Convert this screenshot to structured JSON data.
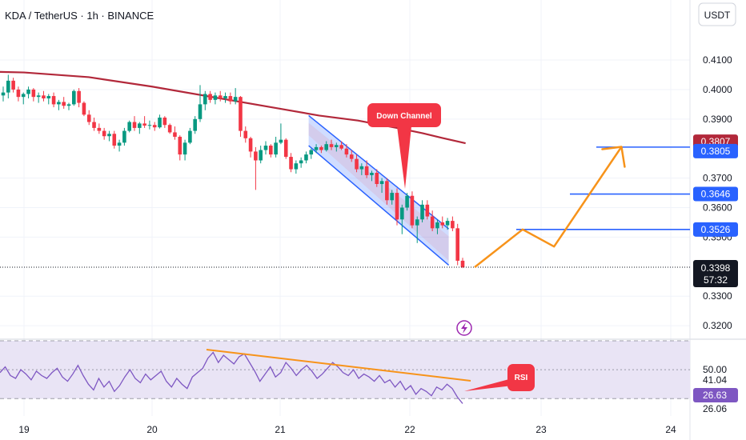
{
  "header": {
    "symbol_line": "KDA / TetherUS · 1h · BINANCE",
    "currency_button": "USDT"
  },
  "colors": {
    "up": "#089981",
    "down": "#f23645",
    "ma": "#b2283a",
    "blue_level": "#2962ff",
    "orange_path": "#f7931a",
    "rsi_line": "#7e57c2",
    "rsi_band": "#e9e4f5",
    "trend_orange": "#f7931a",
    "callout_red": "#f23645"
  },
  "chart_data": {
    "type": "candlestick",
    "x_labels": [
      "19",
      "20",
      "21",
      "22",
      "23",
      "24"
    ],
    "price_ticks": [
      "0.4100",
      "0.4000",
      "0.3900",
      "0.3700",
      "0.3600",
      "0.3500",
      "0.3300",
      "0.3200"
    ],
    "price_ylim": [
      0.3165,
      0.4195
    ],
    "current_price": {
      "label": "0.3398",
      "countdown": "57:32",
      "value": 0.3398
    },
    "ma_tag": {
      "label": "0.3807",
      "value": 0.3807
    },
    "levels": [
      {
        "label": "0.3805",
        "value": 0.3805
      },
      {
        "label": "0.3646",
        "value": 0.3646
      },
      {
        "label": "0.3526",
        "value": 0.3526
      }
    ],
    "ma_series": [
      [
        18.6,
        0.4062
      ],
      [
        19.0,
        0.4058
      ],
      [
        19.5,
        0.4042
      ],
      [
        20.0,
        0.401
      ],
      [
        20.5,
        0.3972
      ],
      [
        21.0,
        0.3935
      ],
      [
        21.3,
        0.3912
      ],
      [
        21.6,
        0.3895
      ],
      [
        21.9,
        0.387
      ],
      [
        22.1,
        0.3852
      ],
      [
        22.25,
        0.3836
      ],
      [
        22.43,
        0.3818
      ]
    ],
    "down_channel": {
      "label": "Down Channel",
      "upper": [
        [
          21.22,
          0.3912
        ],
        [
          22.3,
          0.3528
        ]
      ],
      "lower": [
        [
          21.22,
          0.381
        ],
        [
          22.3,
          0.3405
        ]
      ]
    },
    "projection_path": {
      "points": [
        [
          22.5,
          0.3398
        ],
        [
          22.87,
          0.3526
        ],
        [
          23.1,
          0.3468
        ],
        [
          23.62,
          0.3806
        ]
      ],
      "arrow_to": [
        23.62,
        0.3806
      ]
    },
    "candles": [
      [
        0.398,
        0.401,
        0.396,
        0.399
      ],
      [
        0.399,
        0.405,
        0.397,
        0.403
      ],
      [
        0.403,
        0.404,
        0.399,
        0.4
      ],
      [
        0.4,
        0.401,
        0.396,
        0.3975
      ],
      [
        0.3975,
        0.399,
        0.395,
        0.3985
      ],
      [
        0.3985,
        0.401,
        0.397,
        0.4
      ],
      [
        0.4,
        0.4005,
        0.396,
        0.3975
      ],
      [
        0.3975,
        0.399,
        0.3955,
        0.398
      ],
      [
        0.398,
        0.3995,
        0.396,
        0.397
      ],
      [
        0.397,
        0.3985,
        0.395,
        0.3978
      ],
      [
        0.3978,
        0.399,
        0.394,
        0.395
      ],
      [
        0.395,
        0.3965,
        0.393,
        0.3958
      ],
      [
        0.3958,
        0.3975,
        0.3935,
        0.3945
      ],
      [
        0.3945,
        0.3955,
        0.393,
        0.395
      ],
      [
        0.395,
        0.4,
        0.3945,
        0.3995
      ],
      [
        0.3995,
        0.4005,
        0.394,
        0.3955
      ],
      [
        0.3955,
        0.396,
        0.391,
        0.3915
      ],
      [
        0.3915,
        0.393,
        0.388,
        0.389
      ],
      [
        0.389,
        0.3905,
        0.386,
        0.387
      ],
      [
        0.387,
        0.3885,
        0.385,
        0.386
      ],
      [
        0.386,
        0.387,
        0.383,
        0.3842
      ],
      [
        0.3842,
        0.386,
        0.3825,
        0.385
      ],
      [
        0.385,
        0.386,
        0.38,
        0.381
      ],
      [
        0.381,
        0.383,
        0.379,
        0.382
      ],
      [
        0.382,
        0.387,
        0.381,
        0.386
      ],
      [
        0.386,
        0.3895,
        0.3855,
        0.389
      ],
      [
        0.389,
        0.391,
        0.386,
        0.387
      ],
      [
        0.387,
        0.389,
        0.385,
        0.3885
      ],
      [
        0.3885,
        0.391,
        0.387,
        0.3878
      ],
      [
        0.3878,
        0.3895,
        0.3865,
        0.388
      ],
      [
        0.388,
        0.389,
        0.386,
        0.3872
      ],
      [
        0.3872,
        0.3915,
        0.3868,
        0.3905
      ],
      [
        0.3905,
        0.391,
        0.387,
        0.388
      ],
      [
        0.388,
        0.3885,
        0.385,
        0.3855
      ],
      [
        0.3855,
        0.3875,
        0.383,
        0.384
      ],
      [
        0.384,
        0.3845,
        0.376,
        0.378
      ],
      [
        0.378,
        0.383,
        0.376,
        0.382
      ],
      [
        0.382,
        0.387,
        0.3815,
        0.386
      ],
      [
        0.386,
        0.391,
        0.385,
        0.39
      ],
      [
        0.39,
        0.4015,
        0.389,
        0.395
      ],
      [
        0.395,
        0.3995,
        0.393,
        0.3985
      ],
      [
        0.3985,
        0.3995,
        0.3955,
        0.3965
      ],
      [
        0.3965,
        0.399,
        0.395,
        0.398
      ],
      [
        0.398,
        0.3995,
        0.396,
        0.397
      ],
      [
        0.397,
        0.399,
        0.3955,
        0.3978
      ],
      [
        0.3978,
        0.399,
        0.395,
        0.396
      ],
      [
        0.396,
        0.4005,
        0.395,
        0.3975
      ],
      [
        0.3975,
        0.3978,
        0.384,
        0.386
      ],
      [
        0.386,
        0.3875,
        0.382,
        0.3835
      ],
      [
        0.3835,
        0.384,
        0.377,
        0.379
      ],
      [
        0.379,
        0.3805,
        0.366,
        0.376
      ],
      [
        0.376,
        0.381,
        0.375,
        0.3795
      ],
      [
        0.3795,
        0.3825,
        0.378,
        0.381
      ],
      [
        0.381,
        0.3815,
        0.377,
        0.378
      ],
      [
        0.378,
        0.384,
        0.377,
        0.382
      ],
      [
        0.382,
        0.3885,
        0.3815,
        0.383
      ],
      [
        0.383,
        0.3835,
        0.3765,
        0.3772
      ],
      [
        0.3772,
        0.3785,
        0.372,
        0.373
      ],
      [
        0.373,
        0.376,
        0.3715,
        0.375
      ],
      [
        0.375,
        0.377,
        0.3735,
        0.376
      ],
      [
        0.376,
        0.379,
        0.375,
        0.378
      ],
      [
        0.378,
        0.38,
        0.3765,
        0.3795
      ],
      [
        0.3795,
        0.3815,
        0.3785,
        0.3805
      ],
      [
        0.3805,
        0.381,
        0.3785,
        0.3795
      ],
      [
        0.3795,
        0.3825,
        0.379,
        0.3815
      ],
      [
        0.3815,
        0.383,
        0.3795,
        0.3805
      ],
      [
        0.3805,
        0.382,
        0.379,
        0.3812
      ],
      [
        0.3812,
        0.3825,
        0.3795,
        0.38
      ],
      [
        0.38,
        0.3815,
        0.377,
        0.378
      ],
      [
        0.378,
        0.3795,
        0.3755,
        0.3765
      ],
      [
        0.3765,
        0.378,
        0.372,
        0.373
      ],
      [
        0.373,
        0.375,
        0.371,
        0.374
      ],
      [
        0.374,
        0.376,
        0.37,
        0.371
      ],
      [
        0.371,
        0.3725,
        0.369,
        0.3718
      ],
      [
        0.3718,
        0.373,
        0.367,
        0.368
      ],
      [
        0.368,
        0.37,
        0.365,
        0.369
      ],
      [
        0.369,
        0.37,
        0.361,
        0.3625
      ],
      [
        0.3625,
        0.366,
        0.361,
        0.365
      ],
      [
        0.365,
        0.3665,
        0.354,
        0.356
      ],
      [
        0.356,
        0.361,
        0.351,
        0.36
      ],
      [
        0.36,
        0.365,
        0.359,
        0.364
      ],
      [
        0.364,
        0.3655,
        0.353,
        0.354
      ],
      [
        0.354,
        0.357,
        0.348,
        0.356
      ],
      [
        0.356,
        0.3625,
        0.355,
        0.361
      ],
      [
        0.361,
        0.3625,
        0.356,
        0.357
      ],
      [
        0.357,
        0.359,
        0.352,
        0.353
      ],
      [
        0.353,
        0.356,
        0.351,
        0.355
      ],
      [
        0.355,
        0.357,
        0.353,
        0.354
      ],
      [
        0.354,
        0.3565,
        0.3525,
        0.3555
      ],
      [
        0.3555,
        0.357,
        0.352,
        0.353
      ],
      [
        0.353,
        0.3545,
        0.3405,
        0.342
      ],
      [
        0.342,
        0.343,
        0.3395,
        0.3398
      ]
    ],
    "rsi": {
      "label": "RSI",
      "ticks": [
        "50.00",
        "26.06"
      ],
      "tags": [
        {
          "label": "41.04",
          "value": 41.04
        },
        {
          "label": "26.63",
          "value": 26.63
        }
      ],
      "ylim": [
        18,
        70
      ],
      "band": [
        30,
        70
      ],
      "values": [
        48,
        52,
        46,
        44,
        50,
        47,
        43,
        49,
        46,
        44,
        48,
        51,
        45,
        42,
        47,
        53,
        46,
        40,
        36,
        44,
        38,
        42,
        35,
        39,
        45,
        50,
        44,
        41,
        47,
        43,
        46,
        49,
        42,
        38,
        44,
        40,
        37,
        45,
        48,
        51,
        58,
        62,
        55,
        60,
        57,
        54,
        59,
        61,
        55,
        49,
        42,
        47,
        52,
        45,
        48,
        55,
        51,
        46,
        50,
        53,
        49,
        44,
        47,
        51,
        55,
        52,
        48,
        46,
        50,
        44,
        47,
        45,
        42,
        46,
        41,
        43,
        38,
        42,
        36,
        39,
        33,
        37,
        35,
        32,
        38,
        36,
        40,
        37,
        31,
        26.6
      ],
      "trendline": [
        [
          20.4,
          60
        ],
        [
          22.45,
          38
        ]
      ]
    }
  }
}
